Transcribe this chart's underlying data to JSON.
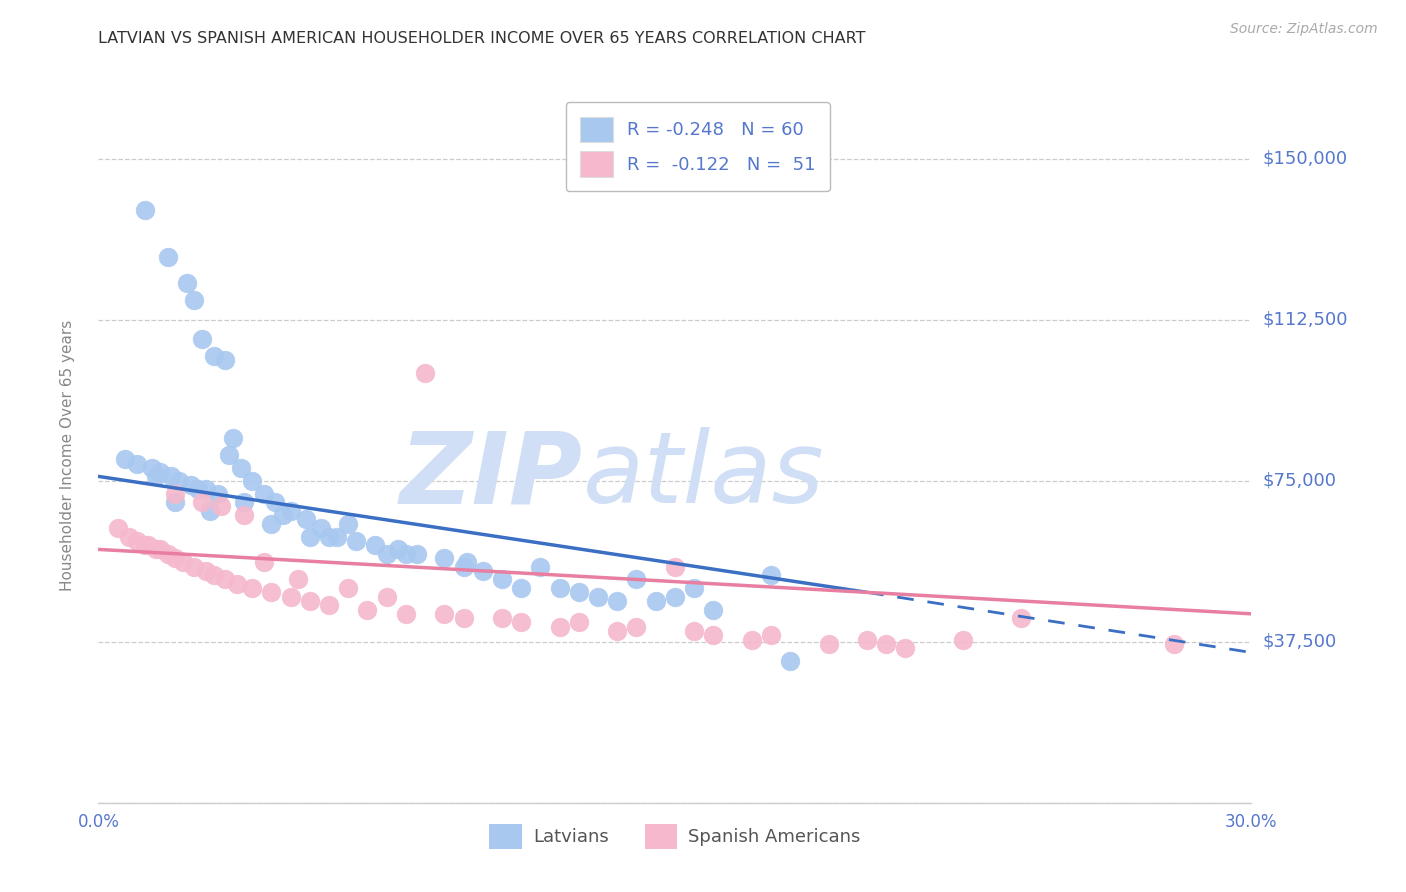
{
  "title": "LATVIAN VS SPANISH AMERICAN HOUSEHOLDER INCOME OVER 65 YEARS CORRELATION CHART",
  "source": "Source: ZipAtlas.com",
  "ylabel": "Householder Income Over 65 years",
  "xlabel_ticks": [
    "0.0%",
    "",
    "",
    "",
    "",
    "",
    "30.0%"
  ],
  "xlabel_vals": [
    0.0,
    5.0,
    10.0,
    15.0,
    20.0,
    25.0,
    30.0
  ],
  "yticks": [
    0,
    37500,
    75000,
    112500,
    150000
  ],
  "ytick_labels": [
    "",
    "$37,500",
    "$75,000",
    "$112,500",
    "$150,000"
  ],
  "xlim": [
    0.0,
    30.0
  ],
  "ylim": [
    0,
    162000
  ],
  "latvian_color": "#a8c8f0",
  "spanish_color": "#f5b8cc",
  "latvian_line_color": "#3a6fc4",
  "spanish_line_color": "#e87fa0",
  "latvian_R": -0.248,
  "latvian_N": 60,
  "spanish_R": -0.122,
  "spanish_N": 51,
  "watermark_zip": "ZIP",
  "watermark_atlas": "atlas",
  "watermark_color": "#d0dff5",
  "grid_color": "#cccccc",
  "axis_label_color": "#5577cc",
  "title_color": "#333333",
  "latvian_line_x0": 0.0,
  "latvian_line_y0": 76000,
  "latvian_line_x1": 20.0,
  "latvian_line_y1": 49000,
  "latvian_dash_x0": 20.0,
  "latvian_dash_y0": 49000,
  "latvian_dash_x1": 30.0,
  "latvian_dash_y1": 35000,
  "spanish_line_x0": 0.0,
  "spanish_line_y0": 59000,
  "spanish_line_x1": 30.0,
  "spanish_line_y1": 44000,
  "latvians_x": [
    1.2,
    1.8,
    2.3,
    2.5,
    2.7,
    3.0,
    3.3,
    0.7,
    1.0,
    1.4,
    1.6,
    1.9,
    2.1,
    2.4,
    2.6,
    2.8,
    3.1,
    3.4,
    3.7,
    4.0,
    4.3,
    4.6,
    5.0,
    5.4,
    5.8,
    6.2,
    6.7,
    7.2,
    7.8,
    8.3,
    9.0,
    9.6,
    10.5,
    11.5,
    12.0,
    13.0,
    14.5,
    15.5,
    17.5,
    3.5,
    2.0,
    1.5,
    2.9,
    4.5,
    5.5,
    6.5,
    8.0,
    9.5,
    11.0,
    13.5,
    14.0,
    16.0,
    3.8,
    4.8,
    6.0,
    7.5,
    10.0,
    12.5,
    15.0,
    18.0
  ],
  "latvians_y": [
    138000,
    127000,
    121000,
    117000,
    108000,
    104000,
    103000,
    80000,
    79000,
    78000,
    77000,
    76000,
    75000,
    74000,
    73000,
    73000,
    72000,
    81000,
    78000,
    75000,
    72000,
    70000,
    68000,
    66000,
    64000,
    62000,
    61000,
    60000,
    59000,
    58000,
    57000,
    56000,
    52000,
    55000,
    50000,
    48000,
    47000,
    50000,
    53000,
    85000,
    70000,
    76000,
    68000,
    65000,
    62000,
    65000,
    58000,
    55000,
    50000,
    47000,
    52000,
    45000,
    70000,
    67000,
    62000,
    58000,
    54000,
    49000,
    48000,
    33000
  ],
  "spanish_x": [
    0.5,
    0.8,
    1.0,
    1.3,
    1.6,
    1.8,
    2.0,
    2.2,
    2.5,
    2.8,
    3.0,
    3.3,
    3.6,
    4.0,
    4.5,
    5.0,
    5.5,
    6.0,
    7.0,
    8.0,
    9.5,
    11.0,
    12.0,
    13.5,
    15.0,
    16.0,
    17.0,
    19.0,
    21.0,
    24.0,
    28.0,
    1.2,
    1.5,
    2.0,
    2.7,
    3.2,
    3.8,
    4.3,
    5.2,
    6.5,
    7.5,
    9.0,
    10.5,
    12.5,
    14.0,
    15.5,
    17.5,
    20.0,
    22.5,
    20.5,
    8.5
  ],
  "spanish_y": [
    64000,
    62000,
    61000,
    60000,
    59000,
    58000,
    57000,
    56000,
    55000,
    54000,
    53000,
    52000,
    51000,
    50000,
    49000,
    48000,
    47000,
    46000,
    45000,
    44000,
    43000,
    42000,
    41000,
    40000,
    55000,
    39000,
    38000,
    37000,
    36000,
    43000,
    37000,
    60000,
    59000,
    72000,
    70000,
    69000,
    67000,
    56000,
    52000,
    50000,
    48000,
    44000,
    43000,
    42000,
    41000,
    40000,
    39000,
    38000,
    38000,
    37000,
    100000
  ]
}
